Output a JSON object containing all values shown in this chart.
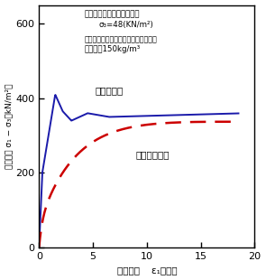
{
  "annotation_line1": "圧密・非排水三軸圧縮試験",
  "annotation_line2": "σ₃=48(KN/m²)",
  "annotation_line3": "固化材：セメント系（一般軟弱土用）",
  "annotation_line4": "添加量：150kg/m³",
  "label_solid": "初期固化土",
  "label_dashed": "破砕・転圧土",
  "ylabel": "偏差応力 σ₁ − σ₃（kN/m²）",
  "xlabel_part1": "軸ひずみ",
  "xlabel_part2": "ε₁（％）",
  "xlim": [
    0,
    20
  ],
  "ylim": [
    0,
    650
  ],
  "yticks": [
    0,
    200,
    400,
    600
  ],
  "xticks": [
    0,
    5,
    10,
    15,
    20
  ],
  "solid_color": "#1a1aaa",
  "dashed_color": "#cc0000",
  "bg_color": "#ffffff",
  "border_color": "#000000"
}
